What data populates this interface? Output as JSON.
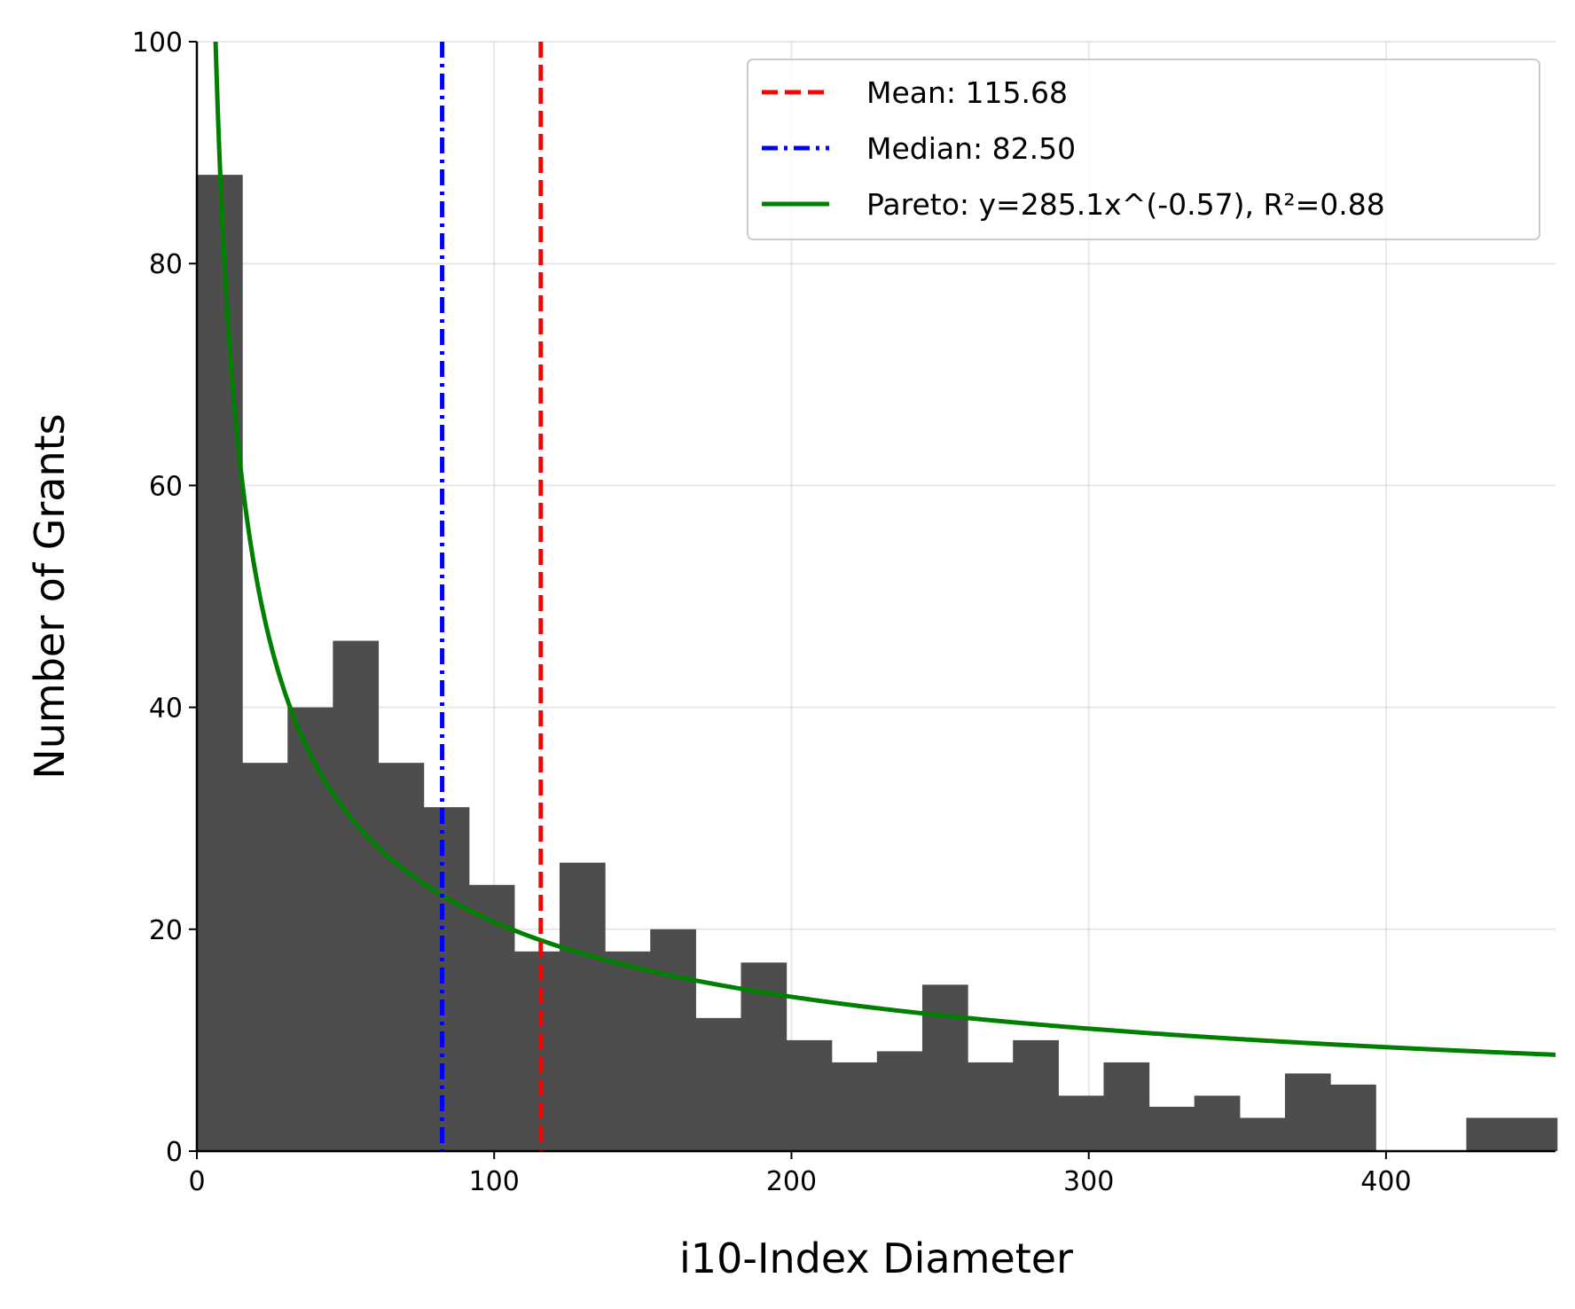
{
  "chart_data": {
    "type": "bar",
    "subtype": "histogram-with-overlays",
    "title": "",
    "xlabel": "i10-Index Diameter",
    "ylabel": "Number of Grants",
    "xlim": [
      0,
      457
    ],
    "ylim": [
      0,
      100
    ],
    "x_ticks": [
      0,
      100,
      200,
      300,
      400
    ],
    "y_ticks": [
      0,
      20,
      40,
      60,
      80,
      100
    ],
    "grid": true,
    "bin_width": 15.25,
    "bin_starts": [
      0,
      15.25,
      30.5,
      45.75,
      61,
      76.25,
      91.5,
      106.75,
      122,
      137.25,
      152.5,
      167.75,
      183,
      198.25,
      213.5,
      228.75,
      244,
      259.25,
      274.5,
      289.75,
      305,
      320.25,
      335.5,
      350.75,
      366,
      381.25,
      396.5,
      411.75,
      427,
      442.25
    ],
    "counts": [
      88,
      35,
      40,
      46,
      35,
      31,
      24,
      18,
      26,
      18,
      20,
      12,
      17,
      10,
      8,
      9,
      15,
      8,
      10,
      5,
      8,
      4,
      5,
      3,
      7,
      6,
      0,
      0,
      3,
      3
    ],
    "bar_color": "#4d4d4d",
    "mean": 115.68,
    "median": 82.5,
    "pareto_fit": {
      "a": 285.1,
      "b": -0.57,
      "r2": 0.88
    },
    "colors": {
      "mean_line": "#ff0000",
      "median_line": "#0000ff",
      "pareto_line": "#008000"
    },
    "legend": {
      "position": "top-right",
      "entries": [
        {
          "label": "Mean: 115.68",
          "style": "dashed",
          "color": "#ff0000"
        },
        {
          "label": "Median: 82.50",
          "style": "dashdot",
          "color": "#0000ff"
        },
        {
          "label": "Pareto: y=285.1x^(-0.57), R²=0.88",
          "style": "solid",
          "color": "#008000"
        }
      ]
    }
  }
}
